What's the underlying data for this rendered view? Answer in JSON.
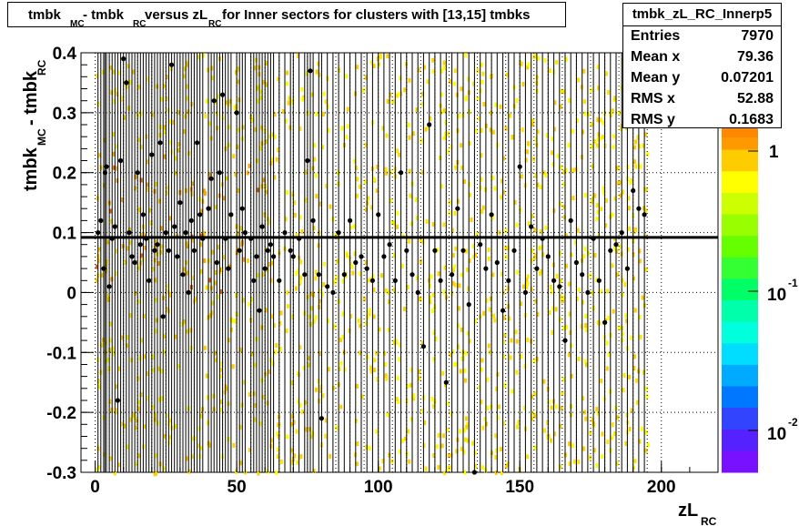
{
  "title": {
    "part1": "tmbk",
    "sub1": "MC",
    "part2": " - tmbk",
    "sub2": "RC",
    "part3": " versus zL",
    "sub3": "RC",
    "part4": " for Inner sectors for clusters with [13,15] tmbks"
  },
  "stats": {
    "name": "tmbk_zL_RC_Innerp5",
    "rows": [
      {
        "label": "Entries",
        "value": "7970"
      },
      {
        "label": "Mean x",
        "value": "79.36"
      },
      {
        "label": "Mean y",
        "value": "0.07201"
      },
      {
        "label": "RMS x",
        "value": "52.88"
      },
      {
        "label": "RMS y",
        "value": "0.1683"
      }
    ]
  },
  "axes": {
    "xlabel_main": "zL",
    "xlabel_sub": "RC",
    "ylabel_part1": "tmbk",
    "ylabel_sub1": "MC",
    "ylabel_part2": " - tmbk",
    "ylabel_sub2": "RC",
    "xticks": [
      "0",
      "50",
      "100",
      "150",
      "200"
    ],
    "yticks": [
      "-0.3",
      "-0.2",
      "-0.1",
      "0",
      "0.1",
      "0.2",
      "0.3",
      "0.4"
    ],
    "palette_ticks": [
      "1",
      "10",
      "-1",
      "10",
      "-2"
    ]
  },
  "chart_data": {
    "type": "heatmap",
    "title": "tmbk_MC - tmbk_RC versus zL_RC for Inner sectors for clusters with [13,15] tmbks",
    "xlabel": "zL_RC",
    "ylabel": "tmbk_MC - tmbk_RC",
    "xlim": [
      -5,
      220
    ],
    "ylim": [
      -0.3,
      0.4
    ],
    "z_scale": "log",
    "z_range": [
      0.005,
      2
    ],
    "palette_labels": [
      "1",
      "10^-1",
      "10^-2"
    ],
    "fit_line": {
      "type": "constant",
      "value": 0.092
    },
    "profile_points": [
      {
        "x": 1,
        "y": 0.1
      },
      {
        "x": 2,
        "y": 0.12
      },
      {
        "x": 3,
        "y": 0.04
      },
      {
        "x": 3.5,
        "y": 0.2
      },
      {
        "x": 4,
        "y": 0.21
      },
      {
        "x": 5,
        "y": 0.01
      },
      {
        "x": 6,
        "y": 0.09
      },
      {
        "x": 7,
        "y": 0.11
      },
      {
        "x": 8,
        "y": -0.18
      },
      {
        "x": 9,
        "y": 0.22
      },
      {
        "x": 10,
        "y": 0.39
      },
      {
        "x": 11,
        "y": 0.35
      },
      {
        "x": 12,
        "y": 0.1
      },
      {
        "x": 13,
        "y": 0.06
      },
      {
        "x": 14,
        "y": 0.05
      },
      {
        "x": 15,
        "y": 0.2
      },
      {
        "x": 16,
        "y": 0.08
      },
      {
        "x": 17,
        "y": 0.13
      },
      {
        "x": 18,
        "y": 0.09
      },
      {
        "x": 19,
        "y": 0.02
      },
      {
        "x": 20,
        "y": 0.23
      },
      {
        "x": 21,
        "y": 0.07
      },
      {
        "x": 22,
        "y": 0.08
      },
      {
        "x": 23,
        "y": 0.25
      },
      {
        "x": 24,
        "y": -0.04
      },
      {
        "x": 25,
        "y": 0.1
      },
      {
        "x": 26,
        "y": 0.07
      },
      {
        "x": 27,
        "y": 0.38
      },
      {
        "x": 28,
        "y": 0.11
      },
      {
        "x": 29,
        "y": 0.06
      },
      {
        "x": 30,
        "y": 0.15
      },
      {
        "x": 31,
        "y": 0.03
      },
      {
        "x": 32,
        "y": 0.1
      },
      {
        "x": 33,
        "y": 0.0
      },
      {
        "x": 34,
        "y": 0.12
      },
      {
        "x": 35,
        "y": 0.07
      },
      {
        "x": 36,
        "y": 0.25
      },
      {
        "x": 37,
        "y": 0.13
      },
      {
        "x": 38,
        "y": 0.09
      },
      {
        "x": 40,
        "y": 0.14
      },
      {
        "x": 41,
        "y": 0.19
      },
      {
        "x": 42,
        "y": 0.32
      },
      {
        "x": 43,
        "y": 0.05
      },
      {
        "x": 44,
        "y": 0.2
      },
      {
        "x": 45,
        "y": 0.33
      },
      {
        "x": 46,
        "y": 0.09
      },
      {
        "x": 47,
        "y": 0.04
      },
      {
        "x": 48,
        "y": 0.13
      },
      {
        "x": 50,
        "y": 0.3
      },
      {
        "x": 51,
        "y": 0.07
      },
      {
        "x": 52,
        "y": 0.14
      },
      {
        "x": 53,
        "y": 0.1
      },
      {
        "x": 55,
        "y": 0.09
      },
      {
        "x": 56,
        "y": 0.02
      },
      {
        "x": 57,
        "y": 0.06
      },
      {
        "x": 58,
        "y": -0.03
      },
      {
        "x": 59,
        "y": 0.11
      },
      {
        "x": 60,
        "y": 0.04
      },
      {
        "x": 61,
        "y": 0.07
      },
      {
        "x": 62,
        "y": 0.08
      },
      {
        "x": 63,
        "y": 0.06
      },
      {
        "x": 65,
        "y": 0.02
      },
      {
        "x": 67,
        "y": 0.1
      },
      {
        "x": 69,
        "y": 0.07
      },
      {
        "x": 70,
        "y": 0.06
      },
      {
        "x": 72,
        "y": 0.09
      },
      {
        "x": 74,
        "y": 0.03
      },
      {
        "x": 75,
        "y": 0.22
      },
      {
        "x": 76,
        "y": 0.37
      },
      {
        "x": 77,
        "y": 0.12
      },
      {
        "x": 79,
        "y": 0.03
      },
      {
        "x": 80,
        "y": -0.21
      },
      {
        "x": 82,
        "y": 0.01
      },
      {
        "x": 84,
        "y": 0.0
      },
      {
        "x": 86,
        "y": 0.1
      },
      {
        "x": 88,
        "y": 0.03
      },
      {
        "x": 90,
        "y": 0.12
      },
      {
        "x": 92,
        "y": 0.05
      },
      {
        "x": 94,
        "y": 0.06
      },
      {
        "x": 96,
        "y": 0.04
      },
      {
        "x": 98,
        "y": 0.02
      },
      {
        "x": 100,
        "y": 0.13
      },
      {
        "x": 102,
        "y": 0.06
      },
      {
        "x": 104,
        "y": 0.08
      },
      {
        "x": 106,
        "y": 0.02
      },
      {
        "x": 108,
        "y": 0.2
      },
      {
        "x": 110,
        "y": 0.07
      },
      {
        "x": 112,
        "y": 0.03
      },
      {
        "x": 114,
        "y": 0.0
      },
      {
        "x": 116,
        "y": -0.09
      },
      {
        "x": 118,
        "y": 0.28
      },
      {
        "x": 120,
        "y": 0.07
      },
      {
        "x": 122,
        "y": 0.02
      },
      {
        "x": 124,
        "y": -0.15
      },
      {
        "x": 126,
        "y": 0.03
      },
      {
        "x": 128,
        "y": 0.14
      },
      {
        "x": 130,
        "y": 0.07
      },
      {
        "x": 132,
        "y": -0.02
      },
      {
        "x": 134,
        "y": -0.3
      },
      {
        "x": 136,
        "y": 0.08
      },
      {
        "x": 138,
        "y": 0.04
      },
      {
        "x": 140,
        "y": 0.13
      },
      {
        "x": 142,
        "y": 0.05
      },
      {
        "x": 144,
        "y": -0.03
      },
      {
        "x": 146,
        "y": 0.02
      },
      {
        "x": 148,
        "y": 0.07
      },
      {
        "x": 150,
        "y": 0.21
      },
      {
        "x": 152,
        "y": 0.0
      },
      {
        "x": 154,
        "y": 0.11
      },
      {
        "x": 156,
        "y": 0.04
      },
      {
        "x": 158,
        "y": 0.09
      },
      {
        "x": 160,
        "y": 0.06
      },
      {
        "x": 162,
        "y": 0.02
      },
      {
        "x": 164,
        "y": 0.01
      },
      {
        "x": 166,
        "y": -0.08
      },
      {
        "x": 168,
        "y": 0.12
      },
      {
        "x": 170,
        "y": 0.05
      },
      {
        "x": 172,
        "y": 0.03
      },
      {
        "x": 174,
        "y": 0.0
      },
      {
        "x": 176,
        "y": 0.09
      },
      {
        "x": 178,
        "y": 0.02
      },
      {
        "x": 180,
        "y": -0.05
      },
      {
        "x": 182,
        "y": 0.07
      },
      {
        "x": 184,
        "y": 0.08
      },
      {
        "x": 186,
        "y": 0.1
      },
      {
        "x": 188,
        "y": 0.04
      },
      {
        "x": 190,
        "y": 0.17
      },
      {
        "x": 192,
        "y": 0.14
      },
      {
        "x": 194,
        "y": 0.13
      }
    ]
  }
}
